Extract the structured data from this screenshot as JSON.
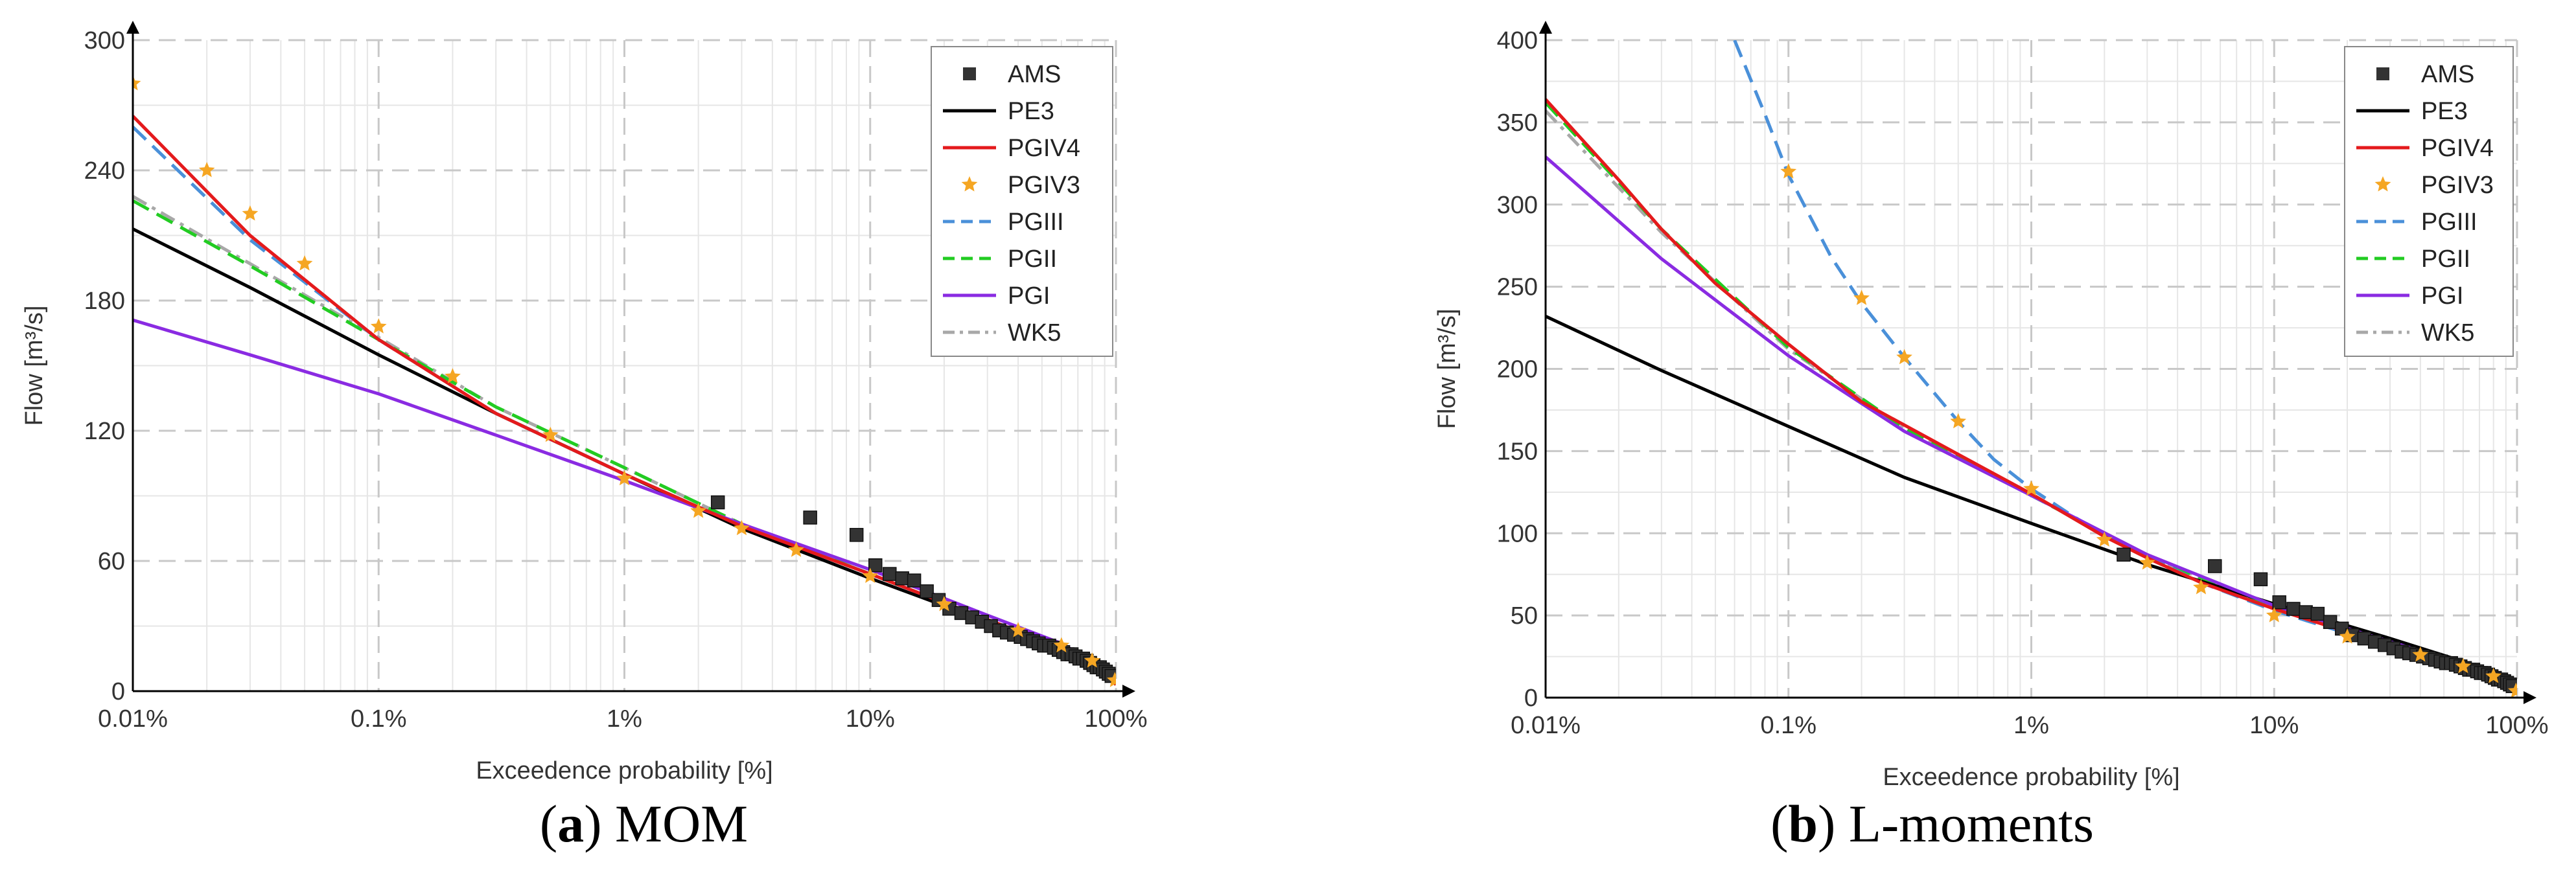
{
  "chart_data": [
    {
      "type": "line",
      "panel_id": "a",
      "caption_letter": "a",
      "caption_text": " MOM",
      "xlabel": "Exceedence probability [%]",
      "ylabel": "Flow [m³/s]",
      "xscale": "log",
      "xlim": [
        0.01,
        100
      ],
      "ylim": [
        0,
        300
      ],
      "xticks": [
        0.01,
        0.1,
        1,
        10,
        100
      ],
      "xtick_labels": [
        "0.01%",
        "0.1%",
        "1%",
        "10%",
        "100%"
      ],
      "yticks": [
        0,
        60,
        120,
        180,
        240,
        300
      ],
      "ytick_labels": [
        "0",
        "60",
        "120",
        "180",
        "240",
        "300"
      ],
      "grid": true,
      "legend_position": "top-right",
      "series": [
        {
          "name": "AMS",
          "style": "marker-square",
          "color": "#333333",
          "x": [
            2.4,
            5.7,
            8.8,
            10.5,
            12,
            13.5,
            15.1,
            17,
            19,
            21,
            23.5,
            26,
            28.5,
            31,
            33.5,
            36,
            38.5,
            41,
            43.5,
            46,
            48.5,
            51,
            53.5,
            56,
            58.5,
            61,
            63.5,
            66,
            68.5,
            71,
            73.5,
            76,
            78.5,
            81,
            83.5,
            86,
            88.5,
            91,
            93.5,
            96
          ],
          "y": [
            87,
            80,
            72,
            58,
            54,
            52,
            51,
            46,
            42,
            38,
            36,
            34,
            32,
            30,
            28,
            27,
            26,
            25,
            24,
            23,
            22,
            21,
            21,
            20,
            19,
            18,
            17,
            17,
            16,
            15,
            15,
            14,
            13,
            12,
            11,
            11,
            10,
            9,
            8,
            7
          ]
        },
        {
          "name": "PE3",
          "style": "solid",
          "color": "#000000",
          "x": [
            0.01,
            0.03,
            0.1,
            0.3,
            1,
            3,
            10,
            30,
            60,
            90,
            100
          ],
          "y": [
            213,
            186,
            155,
            128,
            100,
            75,
            52,
            32,
            20,
            10,
            4
          ]
        },
        {
          "name": "PGIV4",
          "style": "solid",
          "color": "#e41a1c",
          "x": [
            0.01,
            0.03,
            0.1,
            0.3,
            1,
            3,
            10,
            30,
            60,
            90,
            100
          ],
          "y": [
            265,
            210,
            162,
            128,
            100,
            76,
            54,
            33,
            20,
            9,
            3
          ]
        },
        {
          "name": "PGIV3",
          "style": "marker-star",
          "color": "#f5a623",
          "x": [
            0.01,
            0.02,
            0.03,
            0.05,
            0.1,
            0.2,
            0.5,
            1,
            2,
            3,
            5,
            10,
            20,
            40,
            60,
            80,
            99
          ],
          "y": [
            280,
            240,
            220,
            197,
            168,
            145,
            118,
            98,
            83,
            75,
            65,
            53,
            40,
            28,
            21,
            14,
            5
          ]
        },
        {
          "name": "PGIII",
          "style": "dashed",
          "color": "#4a90d9",
          "x": [
            0.01,
            0.03,
            0.1,
            0.3,
            1,
            3,
            10,
            30,
            60,
            90,
            100
          ],
          "y": [
            260,
            208,
            162,
            128,
            100,
            76,
            54,
            33,
            20,
            9,
            3
          ]
        },
        {
          "name": "PGII",
          "style": "dashed",
          "color": "#22cc22",
          "x": [
            0.01,
            0.03,
            0.1,
            0.3,
            1,
            3,
            10,
            30,
            60,
            90,
            100
          ],
          "y": [
            226,
            196,
            162,
            131,
            103,
            77,
            54,
            33,
            20,
            9,
            3
          ]
        },
        {
          "name": "PGI",
          "style": "solid",
          "color": "#8a2be2",
          "x": [
            0.01,
            0.03,
            0.1,
            0.3,
            1,
            3,
            10,
            30,
            60,
            90,
            100
          ],
          "y": [
            171,
            155,
            137,
            118,
            97,
            77,
            56,
            35,
            22,
            10,
            4
          ]
        },
        {
          "name": "WK5",
          "style": "dashdot",
          "color": "#a8a8a8",
          "x": [
            0.01,
            0.03,
            0.1,
            0.3,
            1,
            3,
            10,
            30,
            60,
            90,
            100
          ],
          "y": [
            228,
            197,
            163,
            131,
            103,
            77,
            54,
            33,
            20,
            9,
            3
          ]
        }
      ]
    },
    {
      "type": "line",
      "panel_id": "b",
      "caption_letter": "b",
      "caption_text": " L-moments",
      "xlabel": "Exceedence probability [%]",
      "ylabel": "Flow [m³/s]",
      "xscale": "log",
      "xlim": [
        0.01,
        100
      ],
      "ylim": [
        0,
        400
      ],
      "xticks": [
        0.01,
        0.1,
        1,
        10,
        100
      ],
      "xtick_labels": [
        "0.01%",
        "0.1%",
        "1%",
        "10%",
        "100%"
      ],
      "yticks": [
        0,
        50,
        100,
        150,
        200,
        250,
        300,
        350,
        400
      ],
      "ytick_labels": [
        "0",
        "50",
        "100",
        "150",
        "200",
        "250",
        "300",
        "350",
        "400"
      ],
      "grid": true,
      "legend_position": "top-right",
      "series": [
        {
          "name": "AMS",
          "style": "marker-square",
          "color": "#333333",
          "x": [
            2.4,
            5.7,
            8.8,
            10.5,
            12,
            13.5,
            15.1,
            17,
            19,
            21,
            23.5,
            26,
            28.5,
            31,
            33.5,
            36,
            38.5,
            41,
            43.5,
            46,
            48.5,
            51,
            53.5,
            56,
            58.5,
            61,
            63.5,
            66,
            68.5,
            71,
            73.5,
            76,
            78.5,
            81,
            83.5,
            86,
            88.5,
            91,
            93.5,
            96
          ],
          "y": [
            87,
            80,
            72,
            58,
            54,
            52,
            51,
            46,
            42,
            38,
            36,
            34,
            32,
            30,
            28,
            27,
            26,
            25,
            24,
            23,
            22,
            21,
            21,
            20,
            19,
            18,
            17,
            17,
            16,
            15,
            15,
            14,
            13,
            12,
            11,
            11,
            10,
            9,
            8,
            7
          ]
        },
        {
          "name": "PE3",
          "style": "solid",
          "color": "#000000",
          "x": [
            0.01,
            0.03,
            0.1,
            0.3,
            1,
            3,
            10,
            30,
            60,
            90,
            100
          ],
          "y": [
            232,
            199,
            165,
            134,
            106,
            81,
            57,
            36,
            22,
            11,
            4
          ]
        },
        {
          "name": "PGIV4",
          "style": "solid",
          "color": "#e41a1c",
          "x": [
            0.01,
            0.02,
            0.03,
            0.05,
            0.1,
            0.2,
            0.5,
            1,
            2,
            3,
            5,
            10,
            20,
            40,
            60,
            80,
            100
          ],
          "y": [
            364,
            315,
            285,
            252,
            215,
            180,
            148,
            124,
            98,
            85,
            70,
            54,
            40,
            28,
            20,
            12,
            3
          ]
        },
        {
          "name": "PGIV3",
          "style": "marker-star",
          "color": "#f5a623",
          "x": [
            0.1,
            0.2,
            0.3,
            0.5,
            1,
            2,
            3,
            5,
            10,
            20,
            40,
            60,
            80,
            99
          ],
          "y": [
            320,
            243,
            207,
            168,
            127,
            96,
            82,
            67,
            50,
            37,
            26,
            19,
            13,
            4
          ]
        },
        {
          "name": "PGIII",
          "style": "dashed",
          "color": "#4a90d9",
          "x": [
            0.06,
            0.08,
            0.1,
            0.15,
            0.2,
            0.3,
            0.5,
            0.7,
            1,
            1.5,
            2,
            3,
            5,
            10,
            20,
            40,
            60,
            100
          ],
          "y": [
            400,
            355,
            318,
            268,
            240,
            207,
            168,
            145,
            127,
            110,
            99,
            86,
            70,
            53,
            39,
            27,
            19,
            3
          ]
        },
        {
          "name": "PGII",
          "style": "dashed",
          "color": "#22cc22",
          "x": [
            0.01,
            0.03,
            0.1,
            0.3,
            1,
            3,
            10,
            30,
            60,
            90,
            100
          ],
          "y": [
            362,
            285,
            213,
            164,
            123,
            86,
            55,
            33,
            20,
            9,
            3
          ]
        },
        {
          "name": "PGI",
          "style": "solid",
          "color": "#8a2be2",
          "x": [
            0.01,
            0.03,
            0.1,
            0.3,
            1,
            3,
            10,
            30,
            60,
            90,
            100
          ],
          "y": [
            329,
            267,
            208,
            162,
            123,
            87,
            56,
            34,
            21,
            10,
            4
          ]
        },
        {
          "name": "WK5",
          "style": "dashdot",
          "color": "#a8a8a8",
          "x": [
            0.01,
            0.03,
            0.1,
            0.3,
            1,
            3,
            10,
            30,
            60,
            90,
            100
          ],
          "y": [
            357,
            283,
            212,
            164,
            123,
            86,
            55,
            33,
            20,
            9,
            3
          ]
        }
      ]
    }
  ]
}
